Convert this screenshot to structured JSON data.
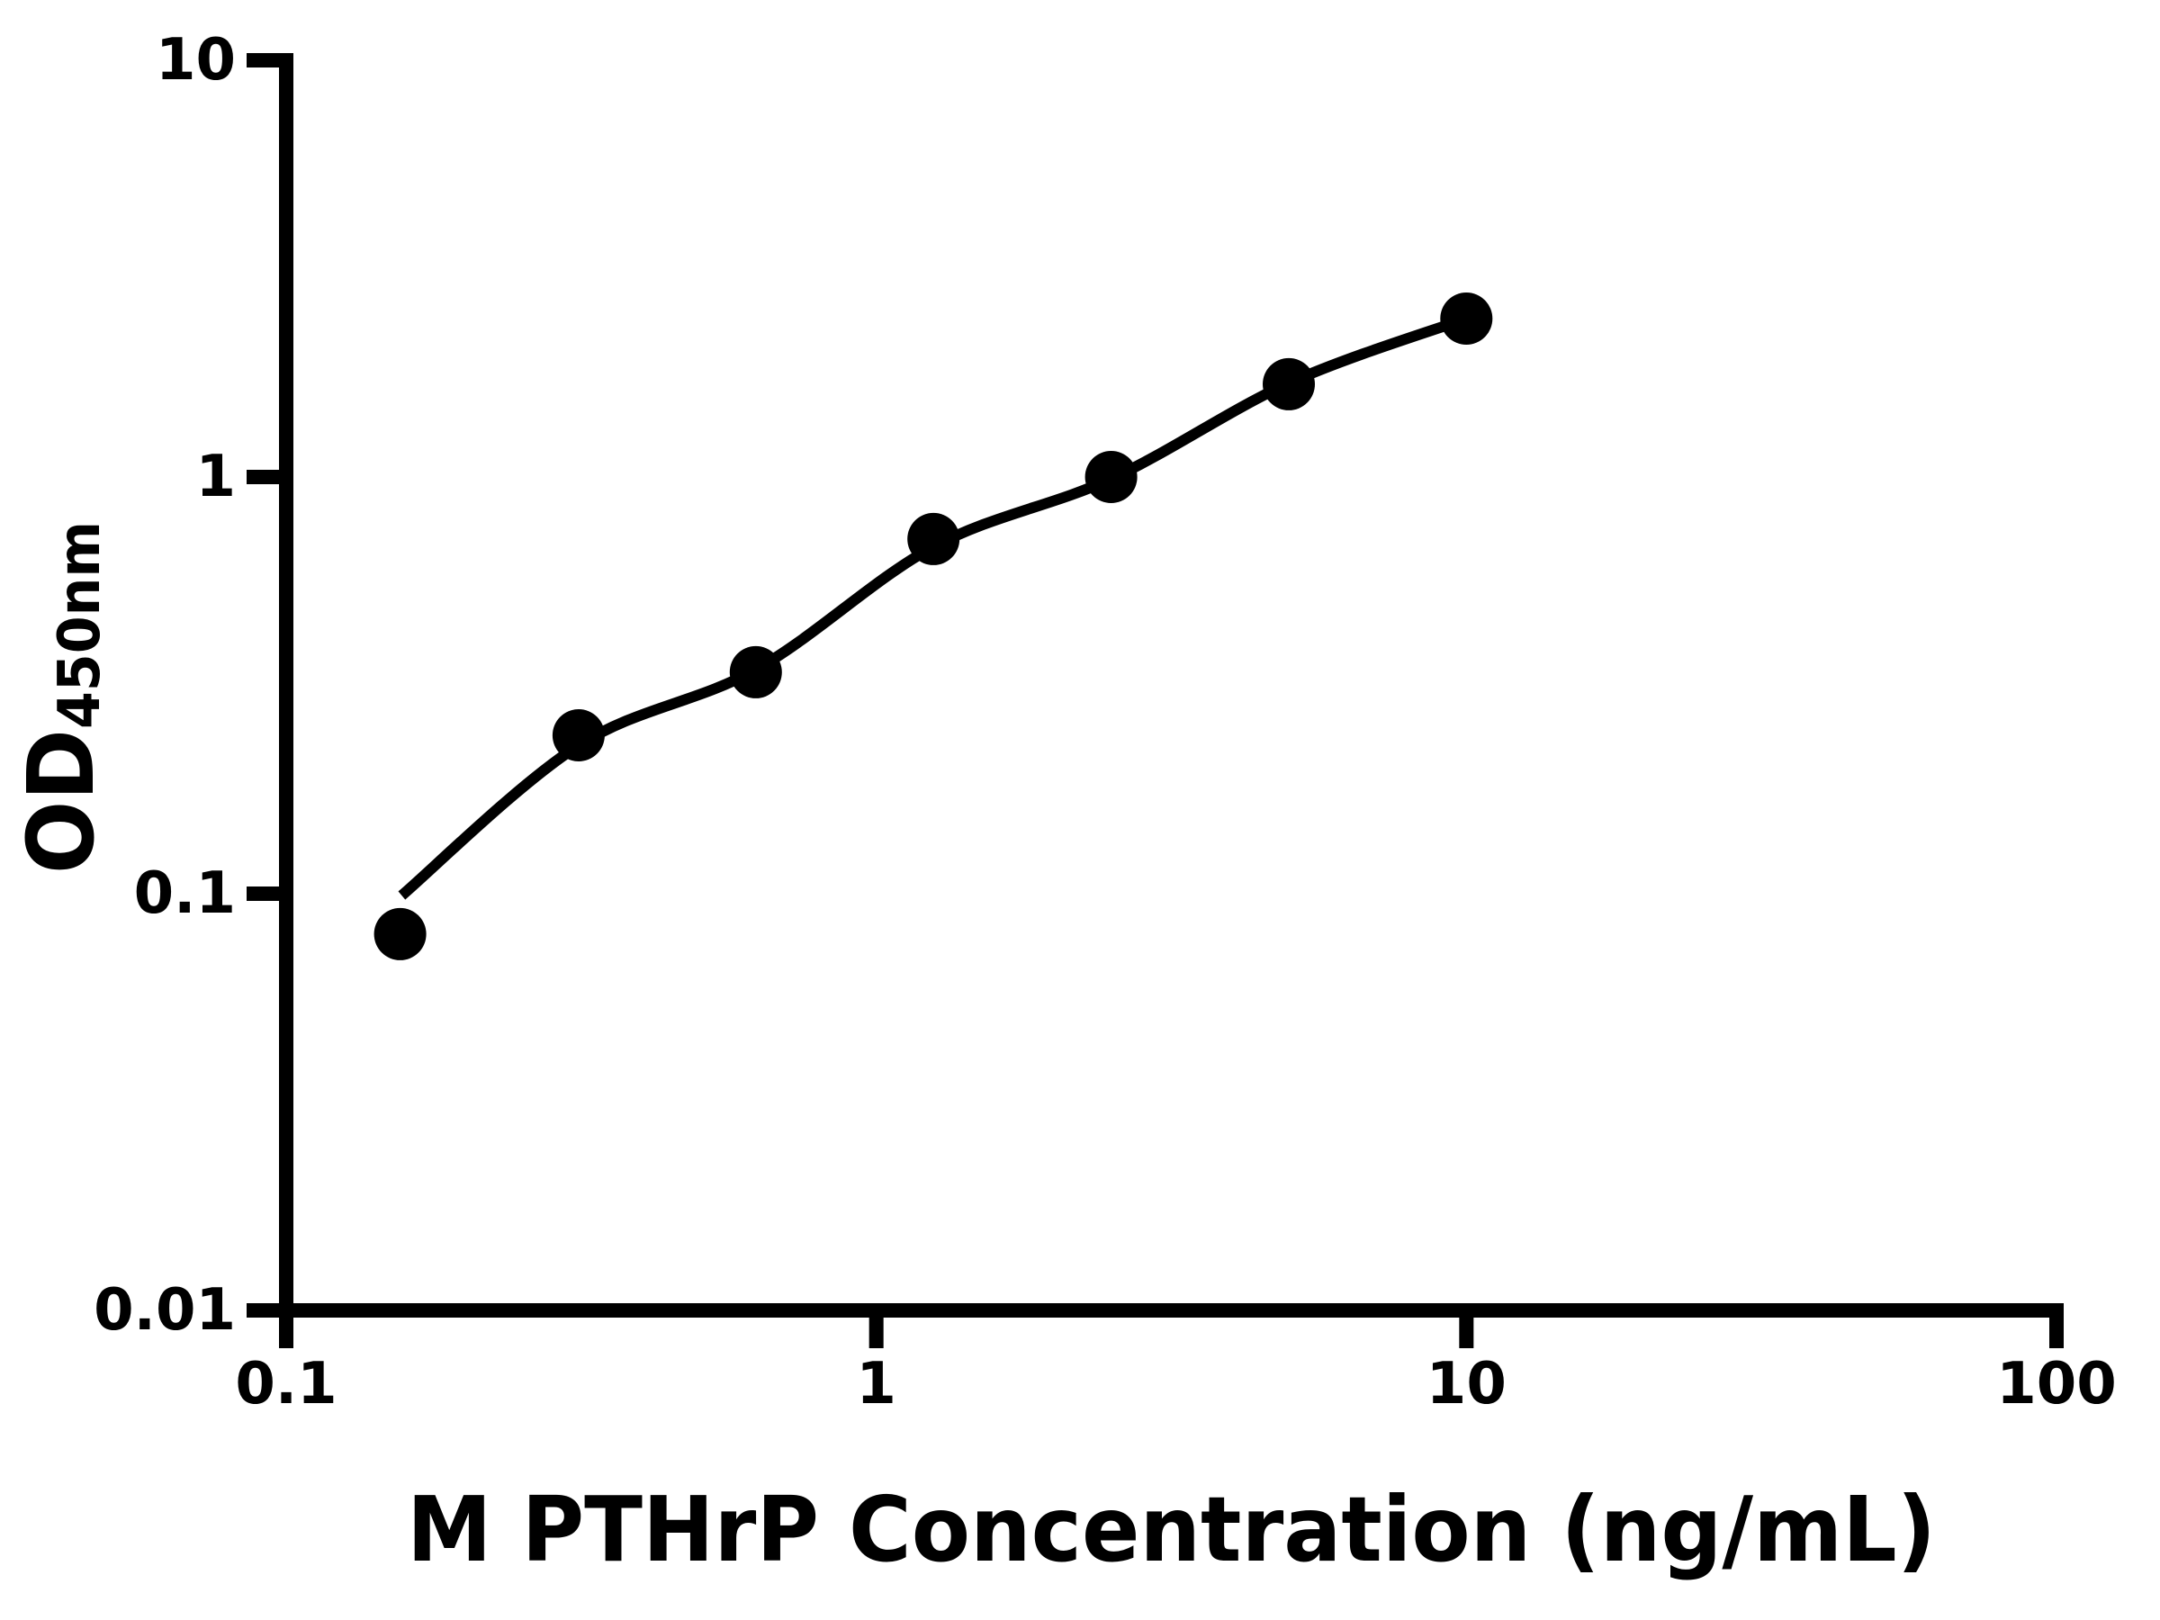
{
  "page": {
    "background": "#ffffff",
    "foreground": "#000000"
  },
  "chart_data": {
    "type": "scatter",
    "title": "",
    "xlabel": "M PTHrP Concentration (ng/mL)",
    "ylabel_main": "OD",
    "ylabel_sub": "450nm",
    "x_scale": "log",
    "y_scale": "log",
    "xlim": [
      0.1,
      100
    ],
    "ylim": [
      0.01,
      10
    ],
    "x_ticks": [
      0.1,
      1,
      10,
      100
    ],
    "x_tick_labels": [
      "0.1",
      "1",
      "10",
      "100"
    ],
    "y_ticks": [
      0.01,
      0.1,
      1,
      10
    ],
    "y_tick_labels": [
      "0.01",
      "0.1",
      "1",
      "10"
    ],
    "grid": false,
    "legend": null,
    "axis_color": "#000000",
    "series": [
      {
        "name": "standard-points",
        "type": "scatter",
        "marker": "circle",
        "color": "#000000",
        "x": [
          0.156,
          0.313,
          0.625,
          1.25,
          2.5,
          5,
          10
        ],
        "y": [
          0.08,
          0.24,
          0.34,
          0.71,
          1.0,
          1.67,
          2.4
        ]
      },
      {
        "name": "fit-curve",
        "type": "line",
        "color": "#000000",
        "x": [
          0.157,
          0.313,
          0.625,
          1.25,
          2.5,
          5,
          10
        ],
        "y": [
          0.099,
          0.227,
          0.345,
          0.68,
          0.99,
          1.68,
          2.4
        ]
      }
    ]
  }
}
